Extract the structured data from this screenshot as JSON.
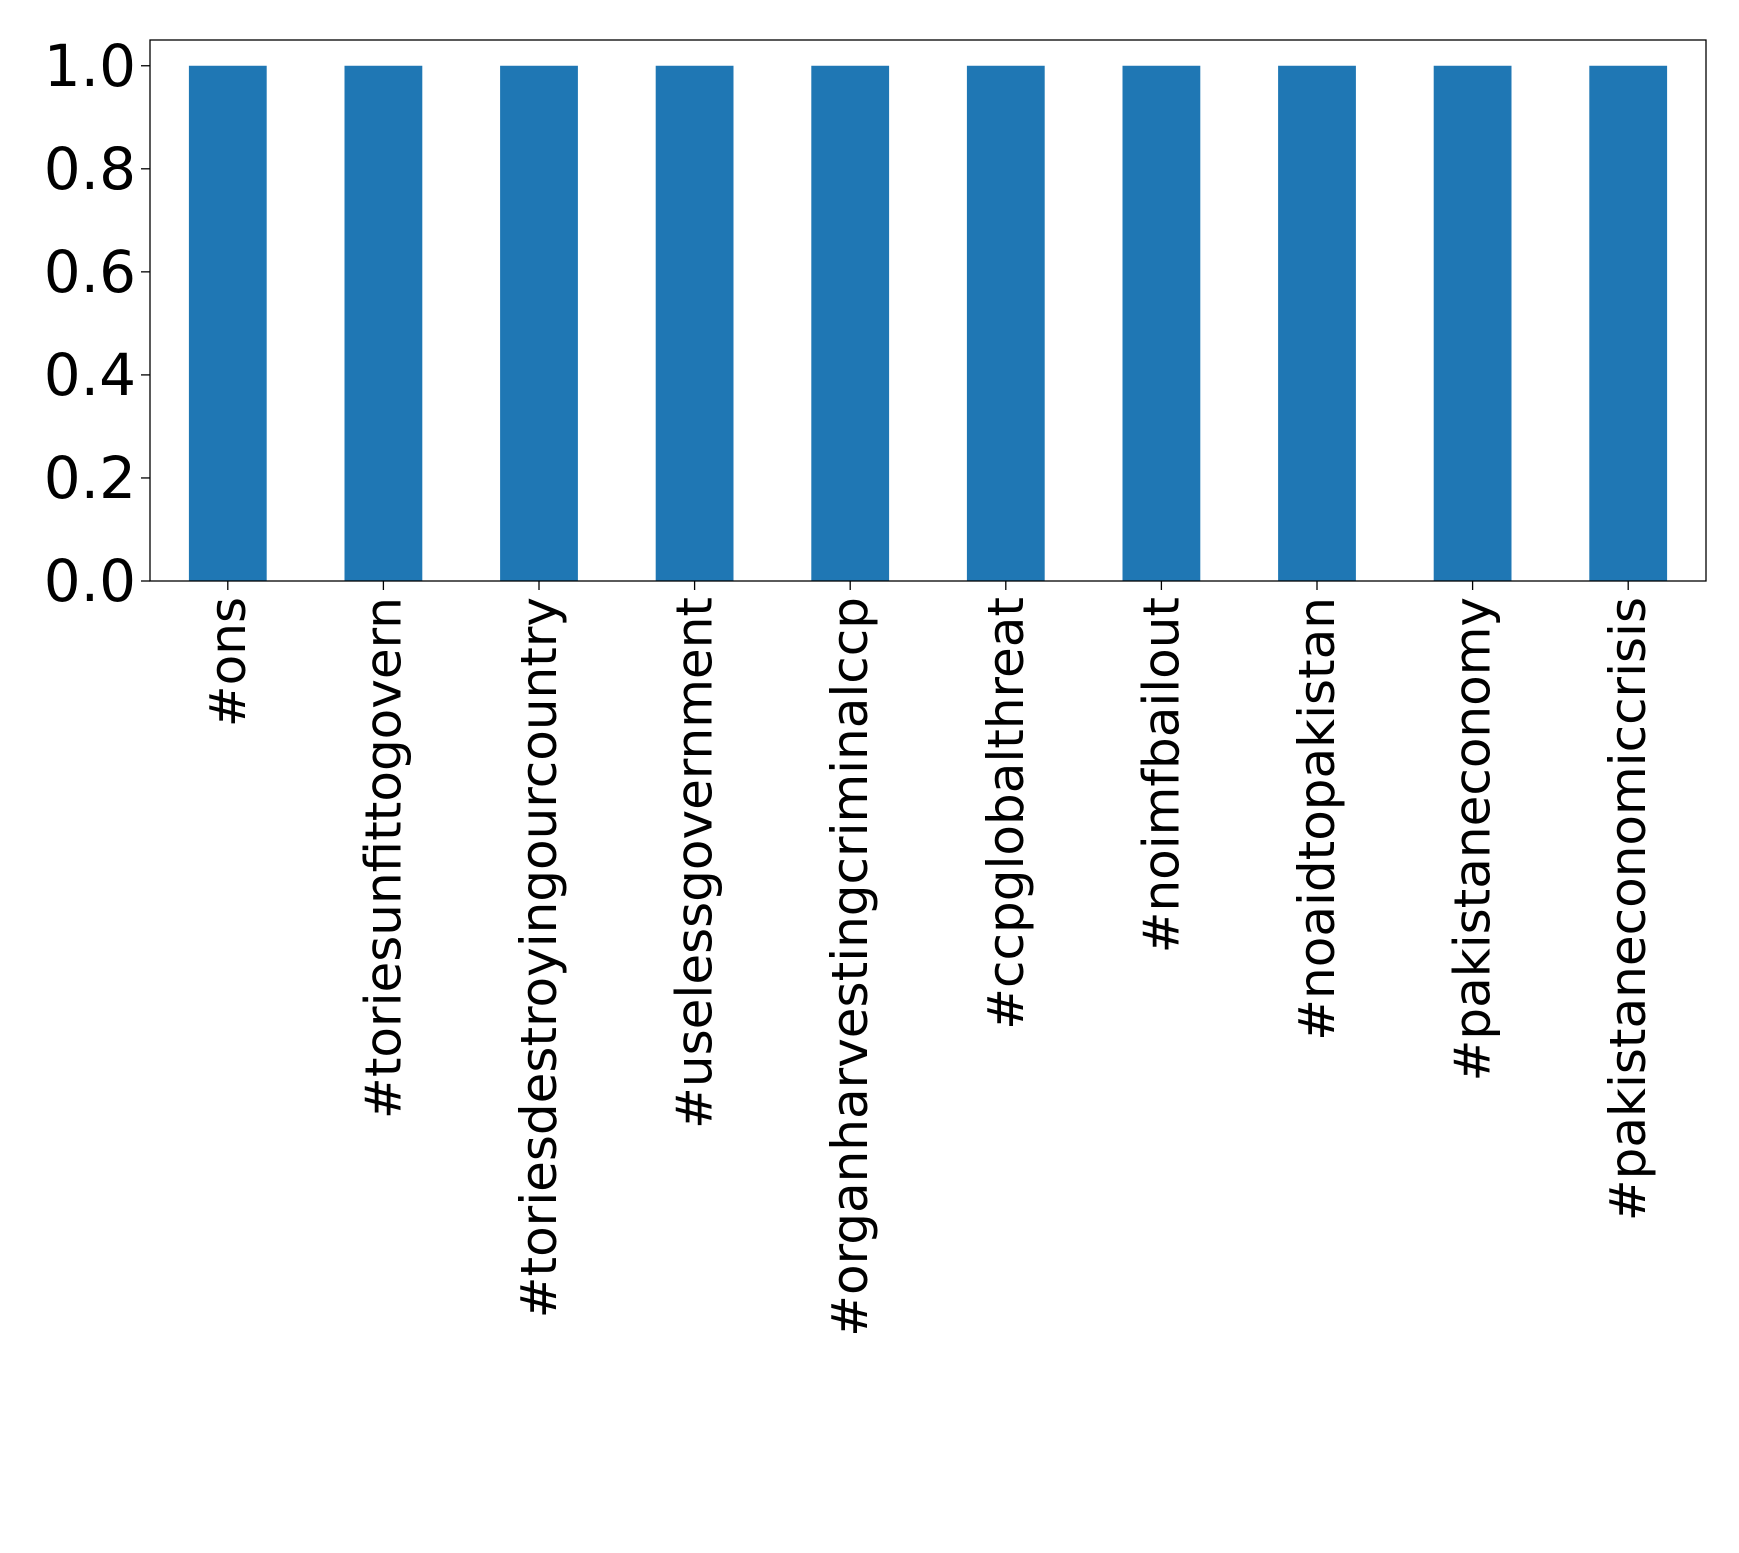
{
  "chart_data": {
    "type": "bar",
    "title": "",
    "xlabel": "",
    "ylabel": "",
    "categories": [
      "#ons",
      "#toriesunfittogovern",
      "#toriesdestroyingourcountry",
      "#uselessgovernment",
      "#organharvestingcriminalccp",
      "#ccpglobalthreat",
      "#noimfbailout",
      "#noaidtopakistan",
      "#pakistaneconomy",
      "#pakistaneconomiccrisis"
    ],
    "values": [
      1.0,
      1.0,
      1.0,
      1.0,
      1.0,
      1.0,
      1.0,
      1.0,
      1.0,
      1.0
    ],
    "ylim": [
      0,
      1.05
    ],
    "yticks": [
      "0.0",
      "0.2",
      "0.4",
      "0.6",
      "0.8",
      "1.0"
    ],
    "grid": false,
    "legend": "none",
    "bar_color": "#1f77b4"
  }
}
